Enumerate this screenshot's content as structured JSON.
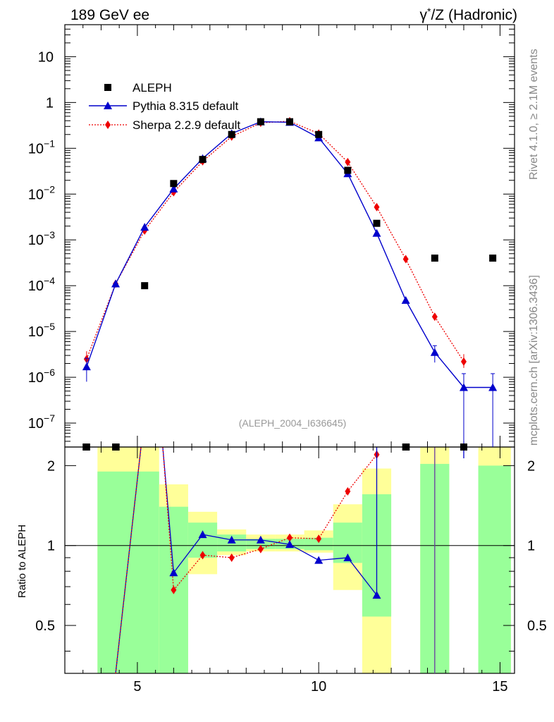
{
  "header": {
    "left": "189 GeV ee",
    "right_sup": "*",
    "right_pre": "γ",
    "right_post": "/Z (Hadronic)"
  },
  "side_text": {
    "top": "Rivet 4.1.0, ≥ 2.1M events",
    "bottom": "mcplots.cern.ch [arXiv:1306.3436]"
  },
  "analysis_tag": "(ALEPH_2004_I636645)",
  "legend": [
    {
      "name": "ALEPH",
      "color": "#000000",
      "marker": "square"
    },
    {
      "name": "Pythia 8.315 default",
      "color": "#0000cc",
      "marker": "triangle"
    },
    {
      "name": "Sherpa 2.2.9 default",
      "color": "#ee0000",
      "marker": "diamond"
    }
  ],
  "chart_data": {
    "type": "line",
    "title": "189 GeV ee",
    "xlabel": "",
    "ylabel_ratio": "Ratio to ALEPH",
    "xlim": [
      3.0,
      15.4
    ],
    "ylim_log": [
      3e-08,
      50
    ],
    "ratio_ylim": [
      0.33,
      2.35
    ],
    "x_ticks": [
      "5",
      "10",
      "15"
    ],
    "y_ticks_main": [
      {
        "v": 10,
        "base": "10",
        "exp": ""
      },
      {
        "v": 1,
        "base": "1",
        "exp": ""
      },
      {
        "v": 0.1,
        "base": "10",
        "exp": "−1"
      },
      {
        "v": 0.01,
        "base": "10",
        "exp": "−2"
      },
      {
        "v": 0.001,
        "base": "10",
        "exp": "−3"
      },
      {
        "v": 0.0001,
        "base": "10",
        "exp": "−4"
      },
      {
        "v": 1e-05,
        "base": "10",
        "exp": "−5"
      },
      {
        "v": 1e-06,
        "base": "10",
        "exp": "−6"
      },
      {
        "v": 1e-07,
        "base": "10",
        "exp": "−7"
      }
    ],
    "y_ticks_ratio": [
      "0.5",
      "1",
      "2"
    ],
    "series": [
      {
        "name": "ALEPH",
        "x": [
          3.6,
          4.4,
          5.2,
          6.0,
          6.8,
          7.6,
          8.4,
          9.2,
          10.0,
          10.8,
          11.6,
          12.4,
          13.2,
          14.0,
          14.8
        ],
        "y": [
          3e-08,
          3e-08,
          0.0001,
          0.017,
          0.057,
          0.2,
          0.38,
          0.38,
          0.2,
          0.033,
          0.0023,
          3e-08,
          0.0004,
          3e-08,
          0.0004
        ]
      },
      {
        "name": "Pythia 8.315 default",
        "x": [
          3.6,
          4.4,
          5.2,
          6.0,
          6.8,
          7.6,
          8.4,
          9.2,
          10.0,
          10.8,
          11.6,
          12.4,
          13.2,
          14.0,
          14.8
        ],
        "y": [
          1.7e-06,
          0.00011,
          0.0019,
          0.013,
          0.06,
          0.21,
          0.38,
          0.37,
          0.17,
          0.028,
          0.0014,
          4.8e-05,
          3.5e-06,
          6e-07,
          6e-07
        ],
        "yerr_lo": [
          9e-07,
          0,
          0,
          0,
          0,
          0,
          0,
          0,
          0,
          0,
          0,
          0,
          1.4e-06,
          5.7e-07,
          5.7e-07
        ],
        "yerr_hi": [
          9e-07,
          0,
          0,
          0,
          0,
          0,
          0,
          0,
          0,
          0,
          0,
          0,
          1.4e-06,
          6e-07,
          6e-07
        ],
        "ratio": [
          null,
          0.34,
          null,
          0.79,
          1.1,
          1.05,
          1.05,
          1.01,
          0.88,
          0.9,
          0.65,
          null,
          null,
          null,
          null
        ]
      },
      {
        "name": "Sherpa 2.2.9 default",
        "x": [
          3.6,
          4.4,
          5.2,
          6.0,
          6.8,
          7.6,
          8.4,
          9.2,
          10.0,
          10.8,
          11.6,
          12.4,
          13.2,
          14.0,
          14.8
        ],
        "y": [
          2.5e-06,
          0.00011,
          0.0016,
          0.011,
          0.052,
          0.18,
          0.36,
          0.39,
          0.21,
          0.05,
          0.0052,
          0.00038,
          2.1e-05,
          2.2e-06,
          null
        ],
        "yerr_lo": [
          0,
          0,
          0,
          0,
          0,
          0,
          0,
          0,
          0,
          0,
          0,
          0,
          0,
          6e-07,
          0
        ],
        "yerr_hi": [
          1.2e-06,
          0,
          0,
          0,
          0,
          0,
          0,
          0,
          0,
          0,
          0,
          0,
          0,
          1e-06,
          0
        ],
        "ratio": [
          null,
          0.34,
          null,
          0.68,
          0.92,
          0.9,
          0.97,
          1.07,
          1.06,
          1.6,
          2.2,
          null,
          null,
          null,
          null
        ]
      }
    ],
    "ratio_bands": [
      {
        "x0": 3.9,
        "x1": 5.6,
        "yellow": [
          0.33,
          2.35
        ],
        "green": [
          0.33,
          1.9
        ]
      },
      {
        "x0": 5.6,
        "x1": 6.4,
        "yellow": [
          0.33,
          1.7
        ],
        "green": [
          0.33,
          1.4
        ]
      },
      {
        "x0": 6.4,
        "x1": 7.2,
        "yellow": [
          0.78,
          1.34
        ],
        "green": [
          0.9,
          1.22
        ]
      },
      {
        "x0": 7.2,
        "x1": 8.0,
        "yellow": [
          0.92,
          1.15
        ],
        "green": [
          0.95,
          1.1
        ]
      },
      {
        "x0": 8.0,
        "x1": 8.8,
        "yellow": [
          0.95,
          1.1
        ],
        "green": [
          0.97,
          1.06
        ]
      },
      {
        "x0": 8.8,
        "x1": 9.6,
        "yellow": [
          0.95,
          1.1
        ],
        "green": [
          0.97,
          1.06
        ]
      },
      {
        "x0": 9.6,
        "x1": 10.4,
        "yellow": [
          0.94,
          1.14
        ],
        "green": [
          0.96,
          1.07
        ]
      },
      {
        "x0": 10.4,
        "x1": 11.2,
        "yellow": [
          0.68,
          1.43
        ],
        "green": [
          0.86,
          1.22
        ]
      },
      {
        "x0": 11.2,
        "x1": 12.0,
        "yellow": [
          0.33,
          1.95
        ],
        "green": [
          0.54,
          1.56
        ]
      },
      {
        "x0": 12.8,
        "x1": 13.6,
        "yellow": [
          0.33,
          2.35
        ],
        "green": [
          0.33,
          2.03
        ]
      },
      {
        "x0": 14.4,
        "x1": 15.3,
        "yellow": [
          0.33,
          2.35
        ],
        "green": [
          0.33,
          2.0
        ]
      }
    ]
  },
  "colors": {
    "band_yellow": "#ffff99",
    "band_green": "#99ff99",
    "pythia": "#0000cc",
    "sherpa": "#ee0000",
    "data": "#000000",
    "ratio_vline": "#6a3aa0"
  }
}
